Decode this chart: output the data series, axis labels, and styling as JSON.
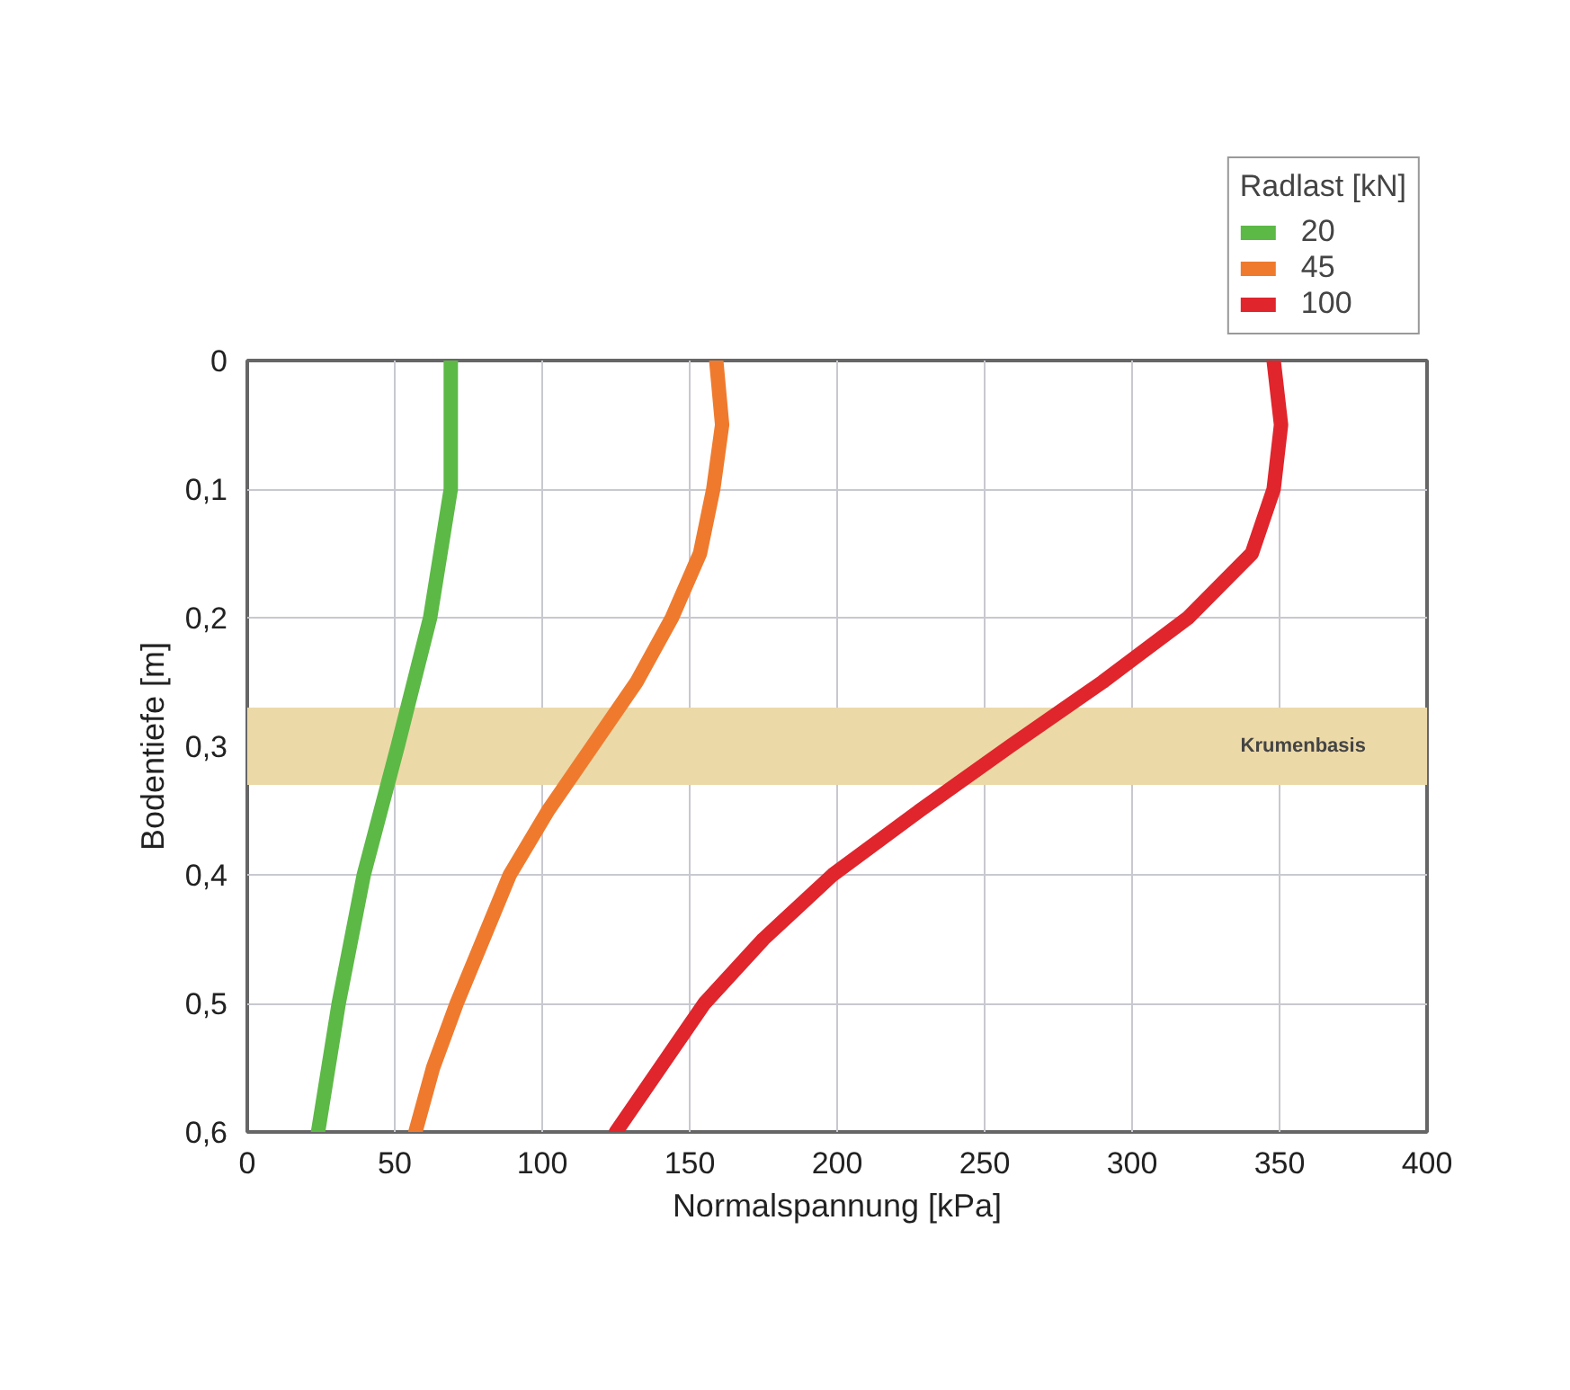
{
  "chart_data": {
    "type": "line",
    "xlabel": "Normalspannung [kPa]",
    "ylabel": "Bodentiefe [m]",
    "legend_title": "Radlast [kN]",
    "legend": "top right",
    "grid": true,
    "line_style": "solid",
    "xlim": [
      0,
      400
    ],
    "xticks": [
      0,
      50,
      100,
      150,
      200,
      250,
      300,
      350,
      400
    ],
    "ylim": [
      0.6,
      0
    ],
    "yticks": [
      0,
      {
        "value": 0.1,
        "label": "0,1"
      },
      {
        "value": 0.2,
        "label": "0,2"
      },
      {
        "value": 0.3,
        "label": "0,3"
      },
      {
        "value": 0.4,
        "label": "0,4"
      },
      {
        "value": 0.5,
        "label": "0,5"
      },
      {
        "value": 0.6,
        "label": "0,6"
      }
    ],
    "bands": [
      {
        "axis": "y",
        "from": 0.27,
        "to": 0.33,
        "label": "Krumenbasis",
        "color": "#ecd9a8"
      }
    ],
    "series": [
      {
        "name": "20",
        "color": "#5cb946",
        "x": [
          69,
          69,
          69,
          62,
          51,
          39.5,
          31,
          24
        ],
        "values": [
          0,
          0.05,
          0.1,
          0.2,
          0.3,
          0.4,
          0.5,
          0.6
        ]
      },
      {
        "name": "45",
        "color": "#ef7a2e",
        "x": [
          159,
          161,
          158,
          153.5,
          144,
          132,
          117,
          102,
          89,
          80,
          71,
          63,
          57
        ],
        "values": [
          0,
          0.05,
          0.1,
          0.15,
          0.2,
          0.25,
          0.3,
          0.35,
          0.4,
          0.45,
          0.5,
          0.55,
          0.6
        ]
      },
      {
        "name": "100",
        "color": "#e0252c",
        "x": [
          348,
          350.5,
          348,
          340.6,
          319,
          290,
          258.6,
          228,
          198.5,
          175,
          155,
          140,
          125
        ],
        "values": [
          0,
          0.05,
          0.1,
          0.15,
          0.2,
          0.25,
          0.3,
          0.35,
          0.4,
          0.45,
          0.5,
          0.55,
          0.6
        ]
      }
    ]
  }
}
